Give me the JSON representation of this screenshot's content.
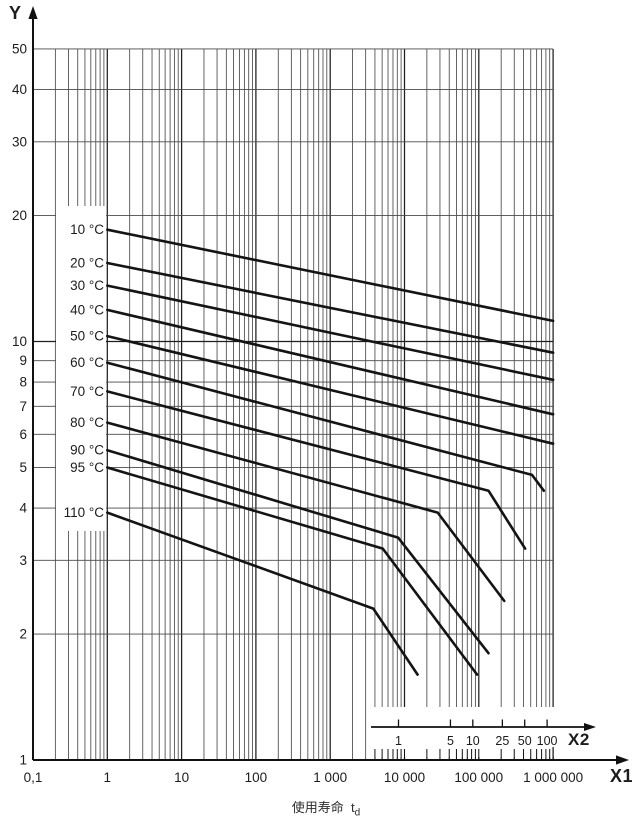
{
  "axes": {
    "y": {
      "label": "Y",
      "ticks": [
        {
          "v": 50,
          "t": "50"
        },
        {
          "v": 40,
          "t": "40"
        },
        {
          "v": 30,
          "t": "30"
        },
        {
          "v": 20,
          "t": "20"
        },
        {
          "v": 10,
          "t": "10"
        },
        {
          "v": 9,
          "t": "9"
        },
        {
          "v": 8,
          "t": "8"
        },
        {
          "v": 7,
          "t": "7"
        },
        {
          "v": 6,
          "t": "6"
        },
        {
          "v": 5,
          "t": "5"
        },
        {
          "v": 4,
          "t": "4"
        },
        {
          "v": 3,
          "t": "3"
        },
        {
          "v": 2,
          "t": "2"
        },
        {
          "v": 1,
          "t": "1"
        }
      ]
    },
    "x1": {
      "label": "X1",
      "ticks": [
        {
          "v": 0.1,
          "t": "0,1"
        },
        {
          "v": 1,
          "t": "1"
        },
        {
          "v": 10,
          "t": "10"
        },
        {
          "v": 100,
          "t": "100"
        },
        {
          "v": 1000,
          "t": "1 000"
        },
        {
          "v": 10000,
          "t": "10 000"
        },
        {
          "v": 100000,
          "t": "100 000"
        },
        {
          "v": 1000000,
          "t": "1 000 000"
        }
      ]
    },
    "x2": {
      "label": "X2",
      "ticks": [
        {
          "v": 1,
          "t": "1"
        },
        {
          "v": 5,
          "t": "5"
        },
        {
          "v": 10,
          "t": "10"
        },
        {
          "v": 25,
          "t": "25"
        },
        {
          "v": 50,
          "t": "50"
        },
        {
          "v": 100,
          "t": "100"
        }
      ]
    }
  },
  "footer": {
    "text": "使用寿命",
    "var": "t",
    "sub": "d"
  },
  "colors": {
    "background": "#ffffff",
    "curve": "#141414",
    "grid_minor": "#4a4a4a",
    "grid_major": "#1f1f1f",
    "axis": "#111111",
    "text": "#1c1c1c"
  },
  "chart_data": {
    "type": "line",
    "title": "",
    "x_axis": {
      "label": "X1",
      "scale": "log",
      "range": [
        0.1,
        1000000
      ],
      "tick_labels": [
        "0,1",
        "1",
        "10",
        "100",
        "1 000",
        "10 000",
        "100 000",
        "1 000 000"
      ]
    },
    "y_axis": {
      "label": "Y",
      "scale": "log",
      "range": [
        1,
        50
      ],
      "tick_labels": [
        "1",
        "2",
        "3",
        "4",
        "5",
        "6",
        "7",
        "8",
        "9",
        "10",
        "20",
        "30",
        "40",
        "50"
      ]
    },
    "secondary_x_axis": {
      "label": "X2",
      "scale": "log",
      "range": [
        1,
        100
      ],
      "tick_labels": [
        "1",
        "5",
        "10",
        "25",
        "50",
        "100"
      ],
      "alignment": "X2=1 aligns with X1=8200"
    },
    "caption": "使用寿命 td",
    "grid": "log-log minor gridlines on",
    "series": [
      {
        "name": "10 °C",
        "points": [
          [
            1,
            18.5
          ],
          [
            1000000,
            11.2
          ]
        ]
      },
      {
        "name": "20 °C",
        "points": [
          [
            1,
            15.4
          ],
          [
            1000000,
            9.4
          ]
        ]
      },
      {
        "name": "30 °C",
        "points": [
          [
            1,
            13.6
          ],
          [
            1000000,
            8.1
          ]
        ]
      },
      {
        "name": "40 °C",
        "points": [
          [
            1,
            11.9
          ],
          [
            1000000,
            6.7
          ]
        ]
      },
      {
        "name": "50 °C",
        "points": [
          [
            1,
            10.3
          ],
          [
            1000000,
            5.7
          ]
        ]
      },
      {
        "name": "60 °C",
        "points": [
          [
            1,
            8.9
          ],
          [
            520000,
            4.8
          ],
          [
            750000,
            4.4
          ]
        ]
      },
      {
        "name": "70 °C",
        "points": [
          [
            1,
            7.6
          ],
          [
            135000,
            4.4
          ],
          [
            420000,
            3.2
          ]
        ]
      },
      {
        "name": "80 °C",
        "points": [
          [
            1,
            6.4
          ],
          [
            28000,
            3.9
          ],
          [
            220000,
            2.4
          ]
        ]
      },
      {
        "name": "90 °C",
        "points": [
          [
            1,
            5.5
          ],
          [
            8200,
            3.4
          ],
          [
            135000,
            1.8
          ]
        ]
      },
      {
        "name": "95 °C",
        "points": [
          [
            1,
            5.0
          ],
          [
            5100,
            3.2
          ],
          [
            95000,
            1.6
          ]
        ]
      },
      {
        "name": "110 °C",
        "points": [
          [
            1,
            3.9
          ],
          [
            3800,
            2.3
          ],
          [
            15000,
            1.6
          ]
        ]
      }
    ]
  }
}
